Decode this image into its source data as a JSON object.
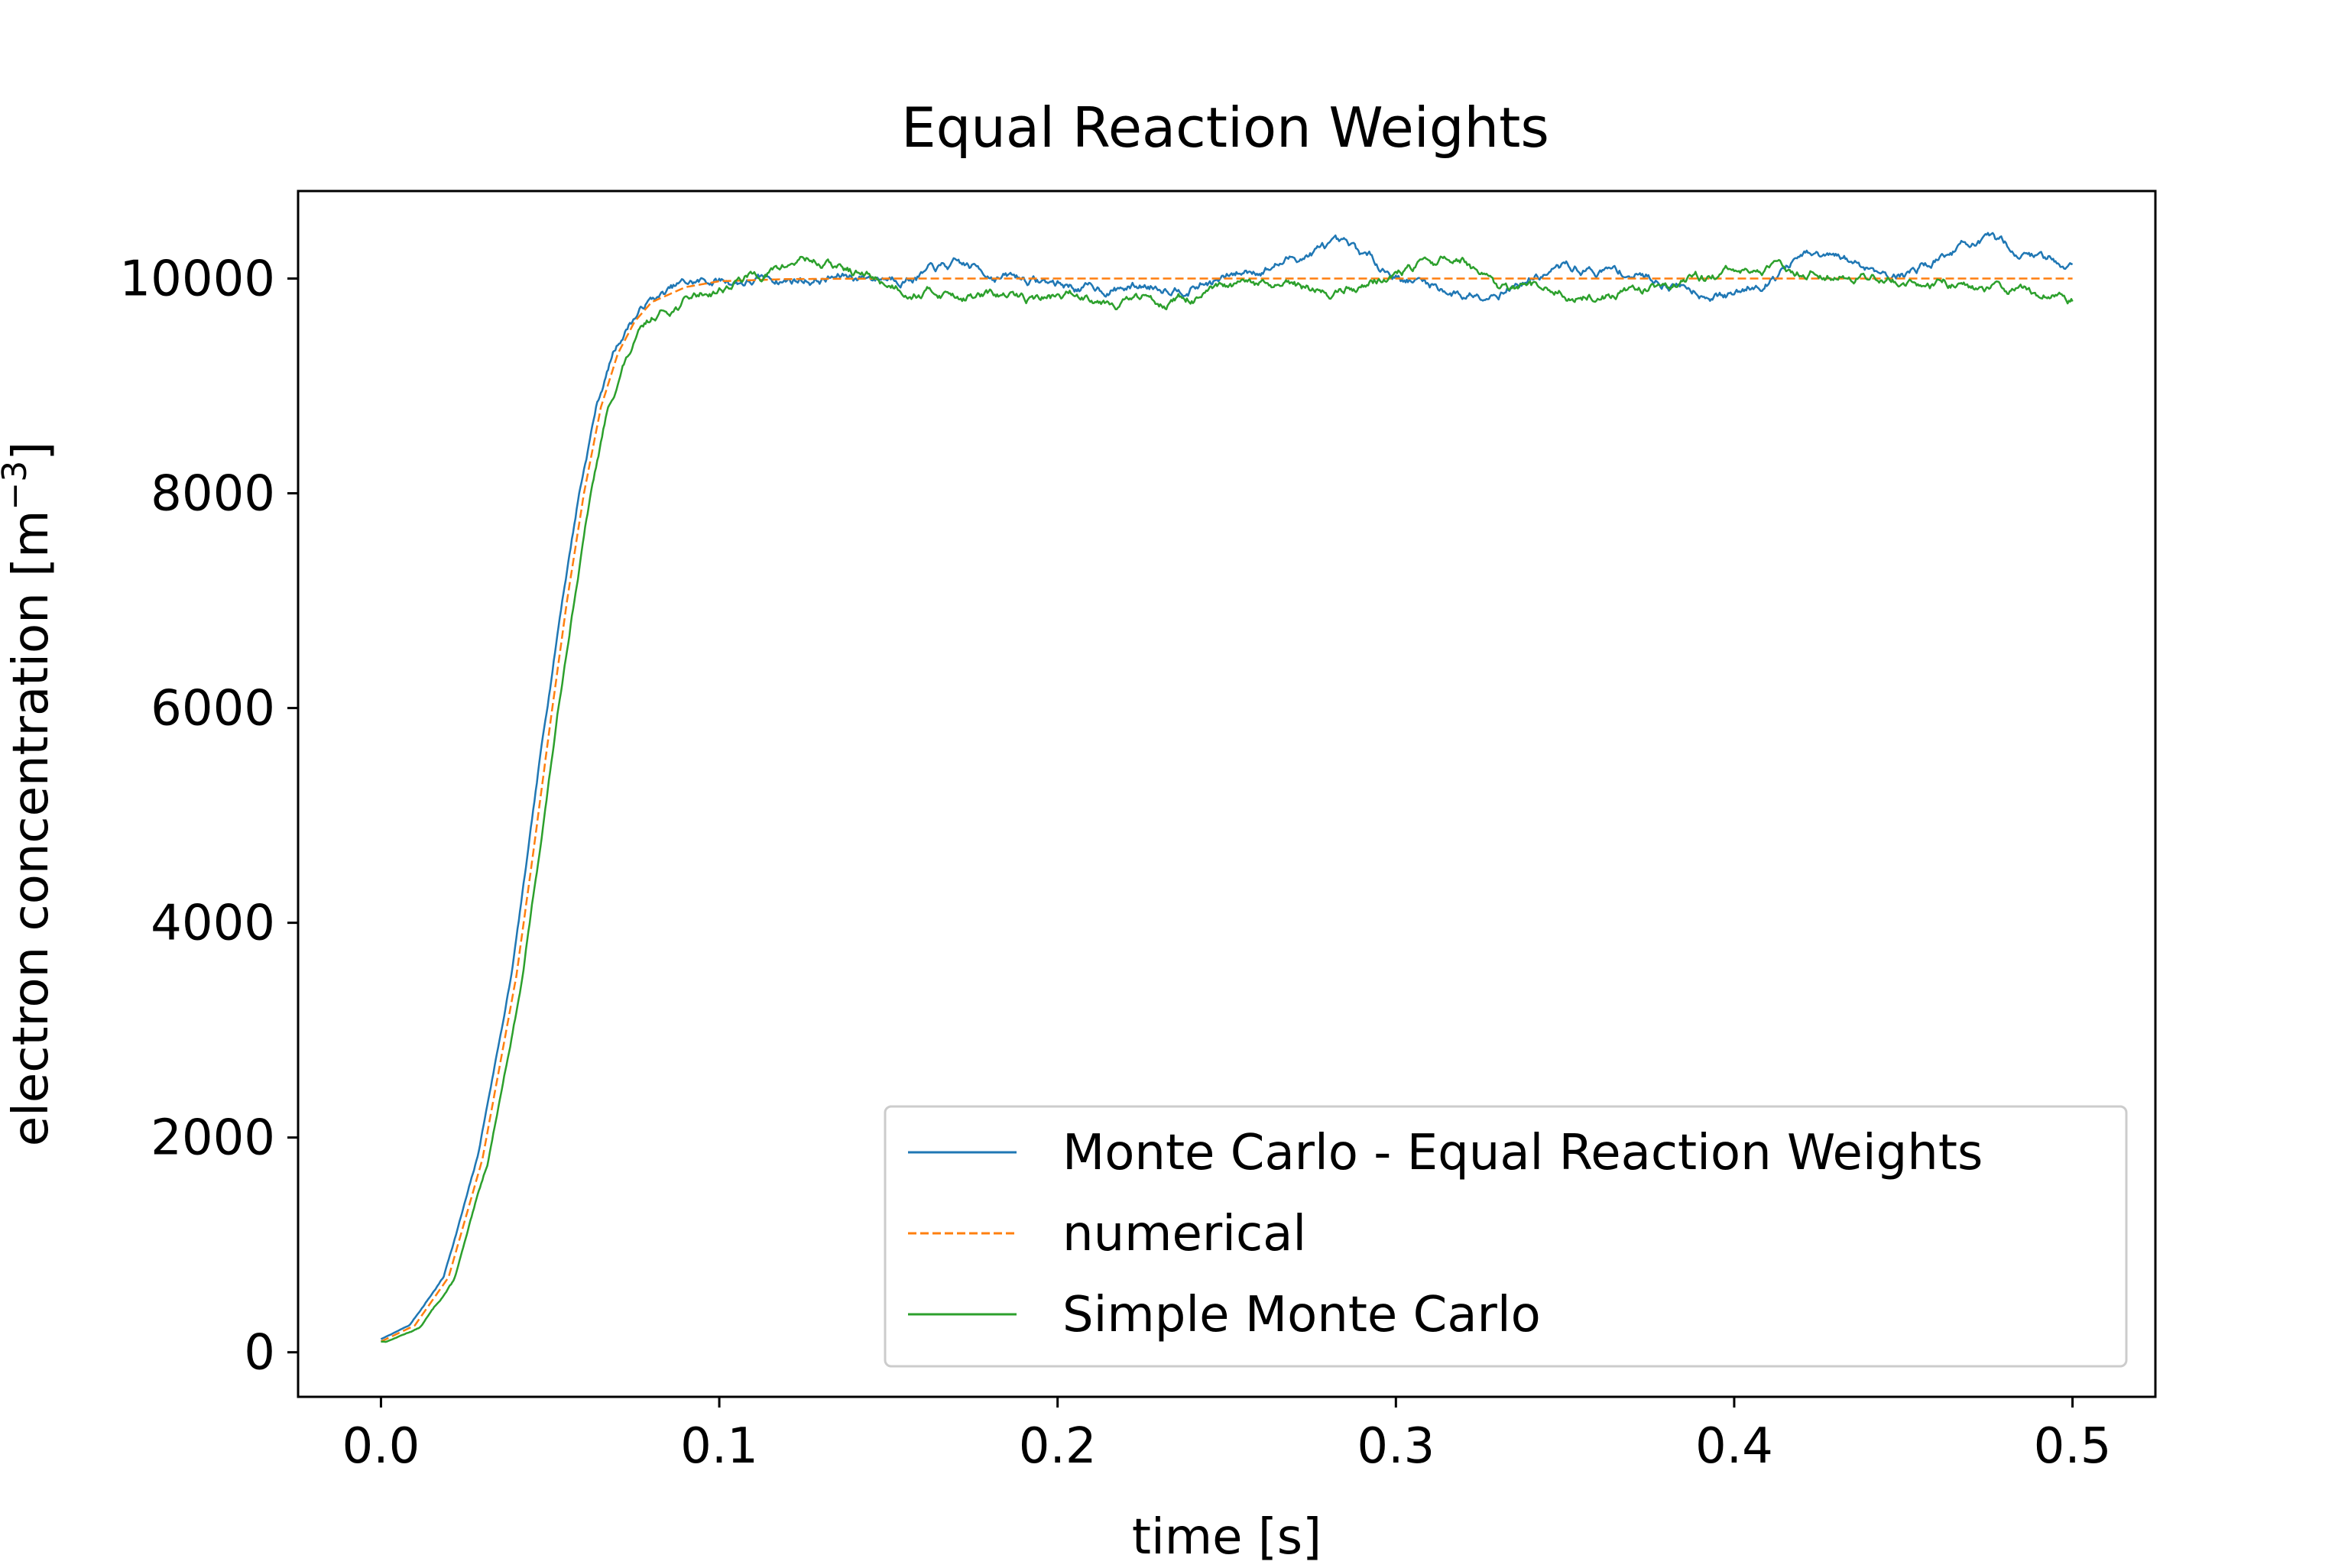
{
  "chart_data": {
    "type": "line",
    "title": "Equal Reaction Weights",
    "xlabel": "time [s]",
    "ylabel_main": "electron concentration [m",
    "ylabel_exp": "−3",
    "ylabel_close": "]",
    "xlim": [
      -0.0245,
      0.5245
    ],
    "ylim": [
      -415,
      10815
    ],
    "xticks": [
      0.0,
      0.1,
      0.2,
      0.3,
      0.4,
      0.5
    ],
    "xtick_labels": [
      "0.0",
      "0.1",
      "0.2",
      "0.3",
      "0.4",
      "0.5"
    ],
    "yticks": [
      0,
      2000,
      4000,
      6000,
      8000,
      10000
    ],
    "ytick_labels": [
      "0",
      "2000",
      "4000",
      "6000",
      "8000",
      "10000"
    ],
    "grid": false,
    "legend_position": "lower-right",
    "curve": {
      "x": [
        0.0,
        0.01,
        0.02,
        0.03,
        0.04,
        0.045,
        0.05,
        0.055,
        0.06,
        0.065,
        0.07,
        0.075,
        0.08,
        0.09,
        0.1,
        0.12,
        0.15,
        0.5
      ],
      "y": [
        100,
        250,
        700,
        1800,
        3500,
        4650,
        5850,
        7000,
        8000,
        8800,
        9300,
        9600,
        9780,
        9920,
        9975,
        9995,
        10000,
        10000
      ]
    },
    "series": [
      {
        "name": "Monte Carlo - Equal Reaction Weights",
        "color": "#1f77b4",
        "style": "solid",
        "x_shift": -0.0015,
        "noise_seed": 7,
        "keypoints_x": [
          0.08,
          0.12,
          0.15,
          0.17,
          0.19,
          0.21,
          0.25,
          0.28,
          0.3,
          0.32,
          0.35,
          0.37,
          0.4,
          0.42,
          0.45,
          0.47,
          0.49,
          0.5
        ],
        "keypoints_y": [
          0,
          0,
          30,
          100,
          0,
          -100,
          0,
          300,
          50,
          -150,
          100,
          50,
          -150,
          200,
          50,
          350,
          200,
          150
        ]
      },
      {
        "name": "numerical",
        "color": "#ff7f0e",
        "style": "dashed",
        "x_shift": 0.0,
        "noise_seed": 0,
        "keypoints_x": [],
        "keypoints_y": []
      },
      {
        "name": "Simple Monte Carlo",
        "color": "#2ca02c",
        "style": "solid",
        "x_shift": 0.0015,
        "noise_seed": 13,
        "keypoints_x": [
          0.08,
          0.1,
          0.12,
          0.125,
          0.15,
          0.19,
          0.21,
          0.23,
          0.26,
          0.28,
          0.3,
          0.32,
          0.33,
          0.36,
          0.4,
          0.43,
          0.45,
          0.48,
          0.5
        ],
        "keypoints_y": [
          -150,
          -50,
          120,
          200,
          -50,
          -200,
          -150,
          -200,
          -100,
          -150,
          50,
          200,
          -150,
          -150,
          50,
          100,
          0,
          -100,
          -150
        ]
      }
    ]
  }
}
